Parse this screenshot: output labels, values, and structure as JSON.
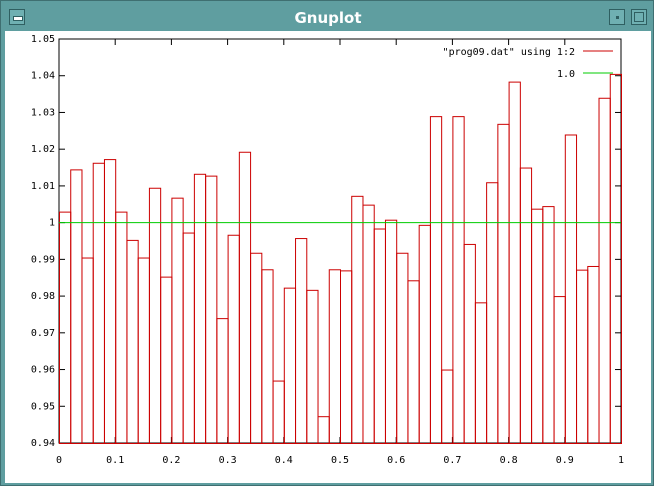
{
  "window": {
    "title": "Gnuplot"
  },
  "chart_data": {
    "type": "bar",
    "style": "histogram-steps",
    "xlim": [
      0,
      1
    ],
    "ylim": [
      0.94,
      1.05
    ],
    "xticks": [
      0,
      0.1,
      0.2,
      0.3,
      0.4,
      0.5,
      0.6,
      0.7,
      0.8,
      0.9,
      1
    ],
    "xtick_labels": [
      "0",
      "0.1",
      "0.2",
      "0.3",
      "0.4",
      "0.5",
      "0.6",
      "0.7",
      "0.8",
      "0.9",
      "1"
    ],
    "yticks": [
      0.94,
      0.95,
      0.96,
      0.97,
      0.98,
      0.99,
      1,
      1.01,
      1.02,
      1.03,
      1.04,
      1.05
    ],
    "ytick_labels": [
      "0.94",
      "0.95",
      "0.96",
      "0.97",
      "0.98",
      "0.99",
      "1",
      "1.01",
      "1.02",
      "1.03",
      "1.04",
      "1.05"
    ],
    "legend_position": "top-right",
    "series": [
      {
        "name": "\"prog09.dat\" using 1:2",
        "color": "#cc0000",
        "values": [
          1.003,
          1.0145,
          0.9905,
          1.0163,
          1.0173,
          1.003,
          0.9953,
          0.9905,
          1.0095,
          0.9853,
          1.0068,
          0.9973,
          1.0133,
          1.0128,
          0.974,
          0.9967,
          1.0193,
          0.9918,
          0.9873,
          0.957,
          0.9823,
          0.9958,
          0.9817,
          0.9473,
          0.9873,
          0.987,
          1.0073,
          1.0049,
          0.9984,
          1.0008,
          0.9918,
          0.9843,
          0.9994,
          1.029,
          0.96,
          1.029,
          0.9942,
          0.9783,
          1.011,
          1.0269,
          1.0384,
          1.015,
          1.0038,
          1.0045,
          0.98,
          1.024,
          0.9872,
          0.9882,
          1.034,
          1.0405
        ]
      },
      {
        "name": "1.0",
        "color": "#00cc00",
        "constant": 1.0
      }
    ]
  }
}
